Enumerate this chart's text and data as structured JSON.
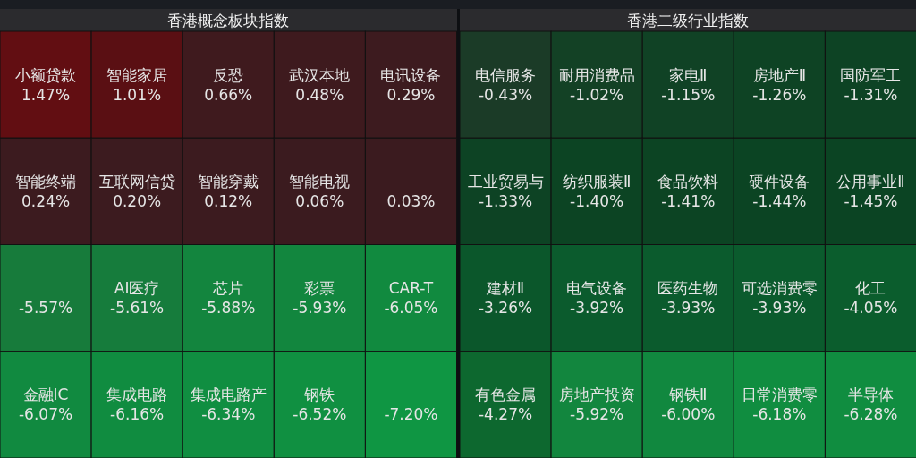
{
  "chart_data": [
    {
      "type": "other",
      "title": "香港概念板块指数",
      "categories": [
        "小额贷款",
        "智能家居",
        "反恐",
        "武汉本地",
        "电讯设备",
        "智能终端",
        "互联网信贷",
        "智能穿戴",
        "智能电视",
        null,
        null,
        "AI医疗",
        "芯片",
        "彩票",
        "CAR-T",
        "金融IC",
        "集成电路",
        "集成电路产",
        "钢铁",
        null
      ],
      "values": [
        1.47,
        1.01,
        0.66,
        0.48,
        0.29,
        0.24,
        0.2,
        0.12,
        0.06,
        0.03,
        -5.57,
        -5.61,
        -5.88,
        -5.93,
        -6.05,
        -6.07,
        -6.16,
        -6.34,
        -6.52,
        -7.2
      ],
      "value_labels": [
        "1.47%",
        "1.01%",
        "0.66%",
        "0.48%",
        "0.29%",
        "0.24%",
        "0.20%",
        "0.12%",
        "0.06%",
        "0.03%",
        "-5.57%",
        "-5.61%",
        "-5.88%",
        "-5.93%",
        "-6.05%",
        "-6.07%",
        "-6.16%",
        "-6.34%",
        "-6.52%",
        "-7.20%"
      ]
    },
    {
      "type": "other",
      "title": "香港二级行业指数",
      "categories": [
        "电信服务",
        "耐用消费品",
        "家电Ⅱ",
        "房地产Ⅱ",
        "国防军工",
        "工业贸易与",
        "纺织服装Ⅱ",
        "食品饮料",
        "硬件设备",
        "公用事业Ⅱ",
        "建材Ⅱ",
        "电气设备",
        "医药生物",
        "可选消费零",
        "化工",
        "有色金属",
        "房地产投资",
        "钢铁Ⅱ",
        "日常消费零",
        "半导体"
      ],
      "values": [
        -0.43,
        -1.02,
        -1.15,
        -1.26,
        -1.31,
        -1.33,
        -1.4,
        -1.41,
        -1.44,
        -1.45,
        -3.26,
        -3.92,
        -3.93,
        -3.93,
        -4.05,
        -4.27,
        -5.92,
        -6.0,
        -6.18,
        -6.28
      ],
      "value_labels": [
        "-0.43%",
        "-1.02%",
        "-1.15%",
        "-1.26%",
        "-1.31%",
        "-1.33%",
        "-1.40%",
        "-1.41%",
        "-1.44%",
        "-1.45%",
        "-3.26%",
        "-3.92%",
        "-3.93%",
        "-3.93%",
        "-4.05%",
        "-4.27%",
        "-5.92%",
        "-6.00%",
        "-6.18%",
        "-6.28%"
      ]
    }
  ]
}
